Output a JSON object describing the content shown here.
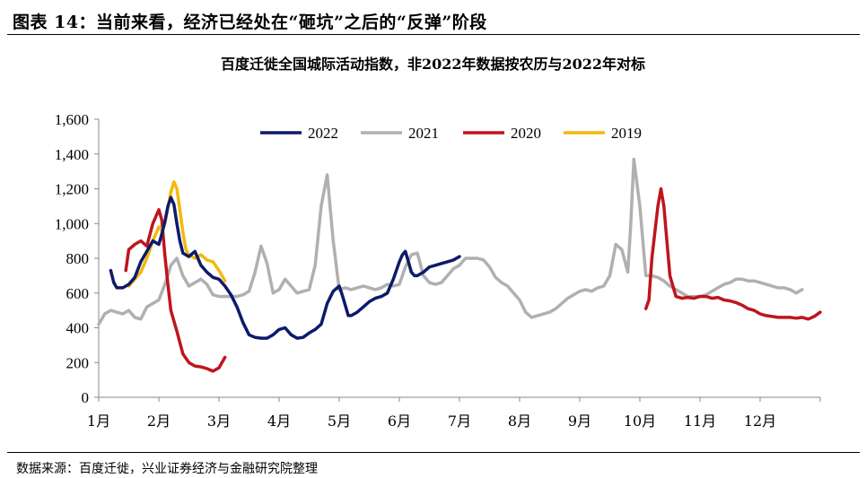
{
  "header": {
    "title": "图表 14：当前来看，经济已经处在“砸坑”之后的“反弹”阶段"
  },
  "source": "数据来源：百度迁徙，兴业证券经济与金融研究院整理",
  "chart_data": {
    "type": "line",
    "title": "百度迁徙全国城际活动指数，非2022年数据按农历与2022年对标",
    "xlabel": "",
    "ylabel": "",
    "ylim": [
      0,
      1600
    ],
    "yticks": [
      "0",
      "200",
      "400",
      "600",
      "800",
      "1,000",
      "1,200",
      "1,400",
      "1,600"
    ],
    "ytick_values": [
      0,
      200,
      400,
      600,
      800,
      1000,
      1200,
      1400,
      1600
    ],
    "xlim": [
      1,
      13
    ],
    "xticks": [
      "1月",
      "2月",
      "3月",
      "4月",
      "5月",
      "6月",
      "7月",
      "8月",
      "9月",
      "10月",
      "11月",
      "12月"
    ],
    "grid": false,
    "legend": "top-center",
    "series": [
      {
        "name": "2022",
        "color": "#0d1a6b",
        "x": [
          1.2,
          1.25,
          1.3,
          1.4,
          1.5,
          1.6,
          1.7,
          1.8,
          1.9,
          1.95,
          2.0,
          2.05,
          2.1,
          2.15,
          2.2,
          2.25,
          2.3,
          2.35,
          2.4,
          2.5,
          2.6,
          2.7,
          2.8,
          2.9,
          3.0,
          3.1,
          3.2,
          3.3,
          3.4,
          3.5,
          3.6,
          3.7,
          3.8,
          3.9,
          4.0,
          4.1,
          4.2,
          4.3,
          4.4,
          4.5,
          4.6,
          4.7,
          4.8,
          4.9,
          5.0,
          5.05,
          5.1,
          5.15,
          5.2,
          5.3,
          5.4,
          5.5,
          5.6,
          5.7,
          5.8,
          5.9,
          6.0,
          6.05,
          6.1,
          6.15,
          6.2,
          6.25,
          6.3,
          6.4,
          6.5,
          6.6,
          6.7,
          6.8,
          6.9,
          7.0
        ],
        "values": [
          730,
          660,
          630,
          630,
          650,
          690,
          780,
          840,
          900,
          890,
          880,
          940,
          1010,
          1100,
          1150,
          1110,
          1000,
          900,
          830,
          810,
          840,
          760,
          720,
          690,
          680,
          640,
          590,
          520,
          430,
          360,
          345,
          340,
          340,
          360,
          390,
          400,
          360,
          340,
          345,
          370,
          390,
          420,
          540,
          610,
          640,
          590,
          530,
          470,
          470,
          490,
          520,
          550,
          570,
          580,
          600,
          680,
          780,
          820,
          840,
          780,
          720,
          700,
          700,
          720,
          750,
          760,
          770,
          780,
          790,
          810
        ]
      },
      {
        "name": "2021",
        "color": "#b0b0b0",
        "x": [
          1.0,
          1.1,
          1.2,
          1.3,
          1.4,
          1.5,
          1.6,
          1.7,
          1.8,
          1.9,
          2.0,
          2.1,
          2.2,
          2.3,
          2.4,
          2.5,
          2.6,
          2.7,
          2.8,
          2.9,
          3.0,
          3.1,
          3.2,
          3.3,
          3.4,
          3.5,
          3.6,
          3.7,
          3.8,
          3.9,
          4.0,
          4.1,
          4.2,
          4.3,
          4.4,
          4.5,
          4.6,
          4.7,
          4.8,
          4.9,
          5.0,
          5.1,
          5.2,
          5.3,
          5.4,
          5.5,
          5.6,
          5.7,
          5.8,
          5.9,
          6.0,
          6.1,
          6.2,
          6.3,
          6.4,
          6.5,
          6.6,
          6.7,
          6.8,
          6.9,
          7.0,
          7.1,
          7.2,
          7.3,
          7.4,
          7.5,
          7.6,
          7.7,
          7.8,
          7.9,
          8.0,
          8.1,
          8.2,
          8.3,
          8.4,
          8.5,
          8.6,
          8.7,
          8.8,
          8.9,
          9.0,
          9.1,
          9.2,
          9.3,
          9.4,
          9.5,
          9.6,
          9.7,
          9.8,
          9.85,
          9.9,
          10.0,
          10.1,
          10.2,
          10.3,
          10.4,
          10.5,
          10.6,
          10.7,
          10.8,
          10.9,
          11.0,
          11.1,
          11.2,
          11.3,
          11.4,
          11.5,
          11.6,
          11.7,
          11.8,
          11.9,
          12.0,
          12.1,
          12.2,
          12.3,
          12.4,
          12.5,
          12.6,
          12.7
        ],
        "values": [
          420,
          480,
          500,
          490,
          480,
          500,
          460,
          450,
          520,
          540,
          560,
          650,
          760,
          800,
          700,
          640,
          660,
          680,
          650,
          590,
          580,
          580,
          580,
          580,
          590,
          610,
          720,
          870,
          770,
          600,
          620,
          680,
          640,
          600,
          610,
          620,
          760,
          1100,
          1280,
          900,
          620,
          630,
          620,
          630,
          640,
          630,
          620,
          630,
          650,
          640,
          650,
          750,
          820,
          830,
          700,
          660,
          650,
          660,
          700,
          740,
          760,
          800,
          800,
          800,
          790,
          750,
          690,
          660,
          640,
          600,
          560,
          490,
          460,
          470,
          480,
          490,
          510,
          540,
          570,
          590,
          610,
          620,
          610,
          630,
          640,
          700,
          880,
          850,
          720,
          1000,
          1370,
          1100,
          700,
          700,
          690,
          670,
          640,
          620,
          600,
          580,
          580,
          580,
          590,
          610,
          630,
          650,
          660,
          680,
          680,
          670,
          670,
          660,
          650,
          640,
          630,
          630,
          620,
          600,
          620
        ]
      },
      {
        "name": "2020",
        "color": "#c0141c",
        "x": [
          1.45,
          1.5,
          1.6,
          1.7,
          1.8,
          1.9,
          2.0,
          2.05,
          2.1,
          2.15,
          2.2,
          2.3,
          2.4,
          2.5,
          2.6,
          2.7,
          2.8,
          2.9,
          3.0,
          3.1,
          null,
          10.1,
          10.15,
          10.2,
          10.3,
          10.35,
          10.4,
          10.45,
          10.5,
          10.6,
          10.7,
          10.8,
          10.9,
          11.0,
          11.1,
          11.2,
          11.3,
          11.4,
          11.5,
          11.6,
          11.7,
          11.8,
          11.9,
          12.0,
          12.1,
          12.2,
          12.3,
          12.4,
          12.5,
          12.6,
          12.7,
          12.8,
          12.9,
          13.0
        ],
        "values": [
          730,
          850,
          880,
          900,
          870,
          1000,
          1080,
          1020,
          820,
          650,
          500,
          380,
          250,
          200,
          180,
          175,
          165,
          150,
          170,
          230,
          null,
          510,
          560,
          800,
          1100,
          1200,
          1100,
          900,
          700,
          580,
          570,
          575,
          570,
          580,
          580,
          570,
          575,
          560,
          555,
          545,
          530,
          510,
          500,
          480,
          470,
          465,
          460,
          460,
          460,
          455,
          460,
          450,
          465,
          490
        ]
      },
      {
        "name": "2019",
        "color": "#f2b90f",
        "x": [
          1.5,
          1.6,
          1.7,
          1.8,
          1.9,
          2.0,
          2.05,
          2.1,
          2.2,
          2.25,
          2.3,
          2.35,
          2.4,
          2.45,
          2.5,
          2.6,
          2.7,
          2.8,
          2.9,
          3.0,
          3.1
        ],
        "values": [
          640,
          680,
          720,
          800,
          900,
          980,
          960,
          1000,
          1180,
          1240,
          1200,
          1080,
          950,
          850,
          820,
          800,
          820,
          790,
          780,
          730,
          670
        ]
      }
    ]
  }
}
